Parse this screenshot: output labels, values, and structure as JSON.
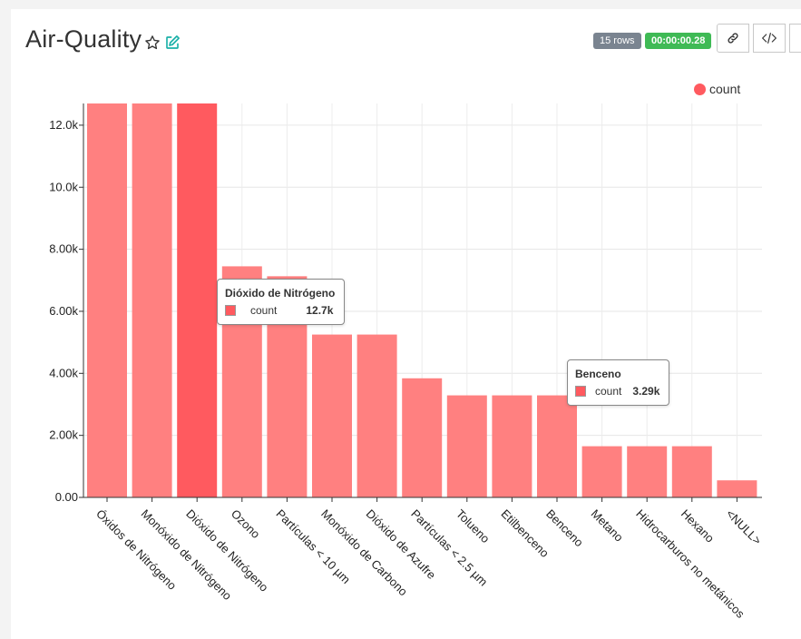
{
  "header": {
    "title": "Air-Quality",
    "rows_badge": "15 rows",
    "time_badge": "00:00:00.28"
  },
  "icons": {
    "star": "star-icon",
    "edit": "edit-icon",
    "link": "link-icon",
    "code": "code-icon"
  },
  "colors": {
    "bar": "#ff8080",
    "bar_highlight": "#ff5a5f",
    "rows_badge": "#7a8490",
    "time_badge": "#3fba55"
  },
  "legend": {
    "label": "count"
  },
  "tooltips": [
    {
      "title": "Dióxido de Nitrógeno",
      "series": "count",
      "value": "12.7k"
    },
    {
      "title": "Benceno",
      "series": "count",
      "value": "3.29k"
    }
  ],
  "chart_data": {
    "type": "bar",
    "categories": [
      "Óxidos de Nitrógeno",
      "Monóxido de Nitrógeno",
      "Dióxido de Nitrógeno",
      "Ozono",
      "Partículas < 10 µm",
      "Monóxido de Carbono",
      "Dióxido de Azufre",
      "Partículas < 2.5 µm",
      "Tolueno",
      "Etilbenceno",
      "Benceno",
      "Metano",
      "Hidrocarburos no metánicos",
      "Hexano",
      "<NULL>"
    ],
    "series": [
      {
        "name": "count",
        "values": [
          12700,
          12700,
          12700,
          7450,
          7130,
          5250,
          5250,
          3840,
          3290,
          3290,
          3290,
          1650,
          1650,
          1650,
          550
        ]
      }
    ],
    "highlighted_category": "Dióxido de Nitrógeno",
    "ylim": [
      0,
      12700
    ],
    "yticks": [
      0,
      2000,
      4000,
      6000,
      8000,
      10000,
      12000
    ],
    "ytick_labels": [
      "0.00",
      "2.00k",
      "4.00k",
      "6.00k",
      "8.00k",
      "10.0k",
      "12.0k"
    ],
    "grid": true,
    "legend_position": "top-right"
  }
}
